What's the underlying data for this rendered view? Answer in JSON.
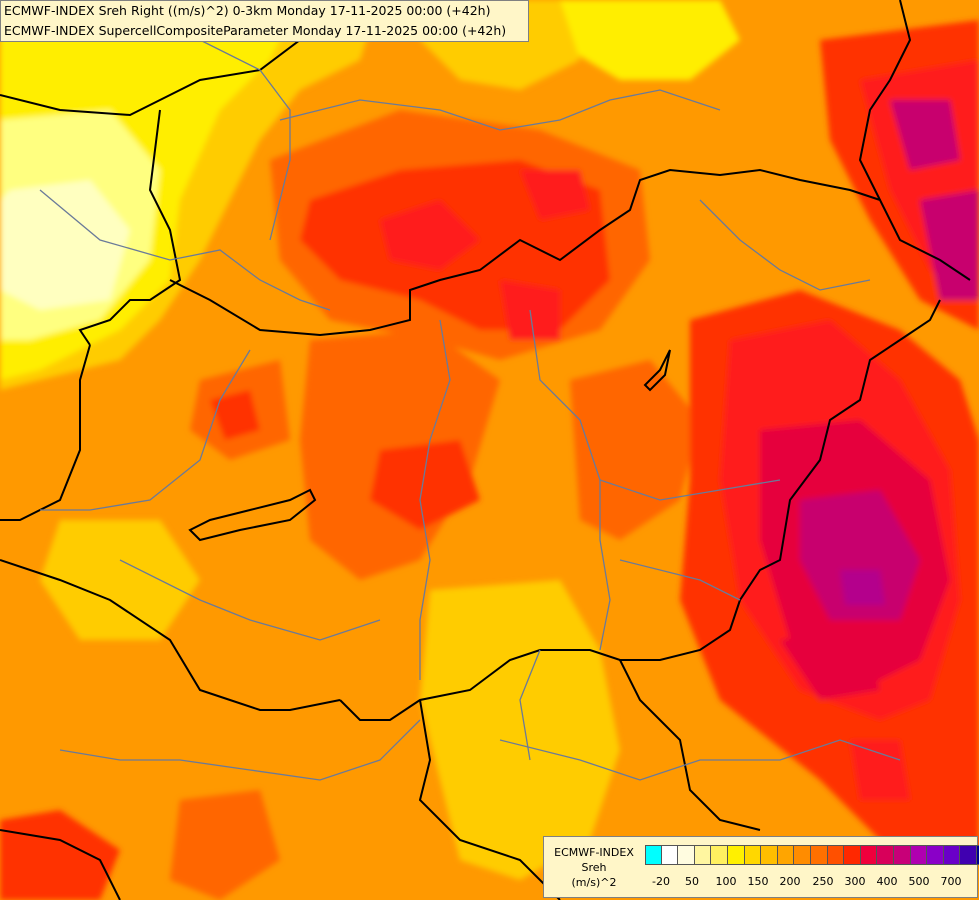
{
  "header": {
    "line1": "ECMWF-INDEX Sreh Right ((m/s)^2) 0-3km Monday 17-11-2025 00:00 (+42h)",
    "line2": "ECMWF-INDEX SupercellCompositeParameter Monday 17-11-2025 00:00 (+42h)"
  },
  "legend": {
    "title": "ECMWF-INDEX",
    "variable": "Sreh",
    "unit": "(m/s)^2",
    "colors": [
      "#00ffff",
      "#ffffff",
      "#fffce0",
      "#fff6a0",
      "#fff060",
      "#fff000",
      "#ffd700",
      "#ffbe00",
      "#ffa500",
      "#ff8c00",
      "#ff7000",
      "#ff5000",
      "#ff2800",
      "#f0003c",
      "#d8005a",
      "#c80078",
      "#b000b0",
      "#8a00c8",
      "#6a00c8",
      "#4000b0",
      "#000090"
    ],
    "ticks": [
      "-20",
      "50",
      "100",
      "150",
      "200",
      "250",
      "300",
      "400",
      "500",
      "700"
    ]
  },
  "map": {
    "fill_colors": {
      "base": "#ff9900",
      "yellow": "#ffee00",
      "light_yellow": "#ffff80",
      "pale": "#ffffc0",
      "gold": "#ffcc00",
      "orange_dark": "#ff6600",
      "red_orange": "#ff3300",
      "red": "#ff1a1a",
      "crimson": "#e6003c",
      "magenta": "#c8006e",
      "purple": "#b4008c"
    }
  }
}
